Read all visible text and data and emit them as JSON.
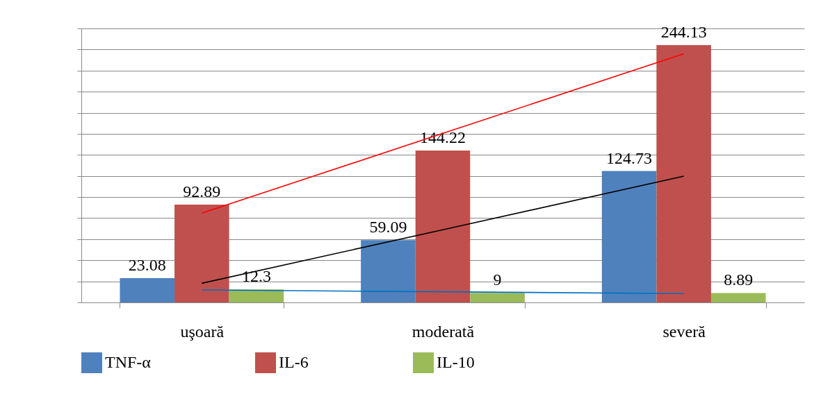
{
  "chart_data": {
    "type": "bar",
    "categories": [
      "uşoară",
      "moderată",
      "severă"
    ],
    "series": [
      {
        "name": "TNF-α",
        "color": "#4f81bd",
        "values": [
          23.08,
          59.09,
          124.73
        ],
        "value_labels": [
          "23.08",
          "59.09",
          "124.73"
        ]
      },
      {
        "name": "IL-6",
        "color": "#c0504d",
        "values": [
          92.89,
          144.22,
          244.13
        ],
        "value_labels": [
          "92.89",
          "144.22",
          "244.13"
        ]
      },
      {
        "name": "IL-10",
        "color": "#9bbb59",
        "values": [
          12.3,
          9,
          8.89
        ],
        "value_labels": [
          "12.3",
          "9",
          "8.89"
        ]
      },
      {
        "type": "line",
        "color": "#000000",
        "x": [
          "uşoară",
          "moderată",
          "severă"
        ],
        "values": [
          18.2,
          69.0,
          119.8
        ]
      },
      {
        "type": "line",
        "color": "#ff0000",
        "x": [
          "uşoară",
          "moderată",
          "severă"
        ],
        "values": [
          84.8,
          160.4,
          236.0
        ]
      },
      {
        "type": "line",
        "color": "#0070c0",
        "x": [
          "uşoară",
          "moderată",
          "severă"
        ],
        "values": [
          11.8,
          10.1,
          8.4
        ]
      }
    ],
    "ylim": [
      0,
      260
    ],
    "yticks": [
      {
        "value": 0,
        "label": null
      },
      {
        "value": 20,
        "label": null
      },
      {
        "value": 40,
        "label": null
      },
      {
        "value": 60,
        "label": null
      },
      {
        "value": 80,
        "label": null
      },
      {
        "value": 100,
        "label": null
      },
      {
        "value": 120,
        "label": null
      },
      {
        "value": 140,
        "label": null
      },
      {
        "value": 160,
        "label": null
      },
      {
        "value": 180,
        "label": null
      },
      {
        "value": 200,
        "label": null
      },
      {
        "value": 220,
        "label": null
      },
      {
        "value": 240,
        "label": null
      },
      {
        "value": 260,
        "label": null
      }
    ],
    "tick_labels": "x",
    "grid": "y",
    "legend": "bottom",
    "marker": "none",
    "line_style": "solid"
  }
}
